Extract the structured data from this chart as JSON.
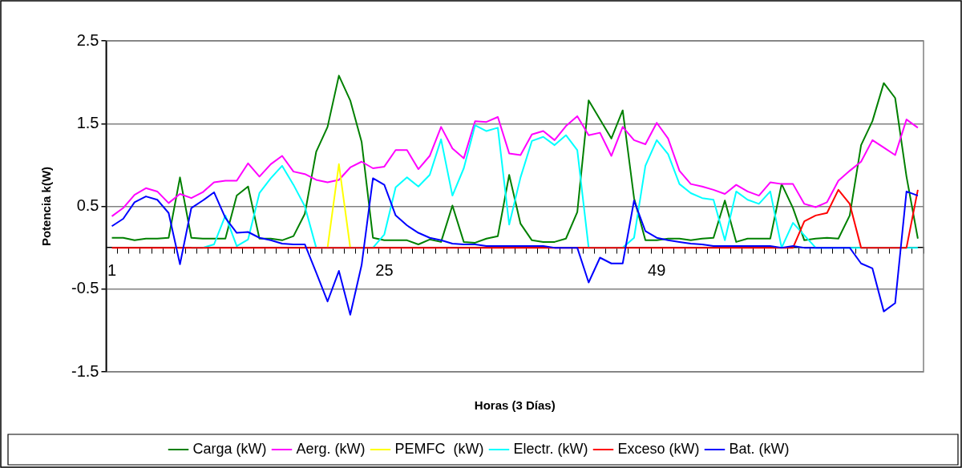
{
  "chart_data": {
    "type": "line",
    "xlabel": "Horas (3 Días)",
    "ylabel": "Potencia k(W)",
    "categories": [
      "1",
      null,
      null,
      null,
      null,
      null,
      null,
      null,
      null,
      null,
      null,
      null,
      null,
      null,
      null,
      null,
      null,
      null,
      null,
      null,
      null,
      null,
      null,
      null,
      "25",
      null,
      null,
      null,
      null,
      null,
      null,
      null,
      null,
      null,
      null,
      null,
      null,
      null,
      null,
      null,
      null,
      null,
      null,
      null,
      null,
      null,
      null,
      null,
      "49",
      null,
      null,
      null,
      null,
      null,
      null,
      null,
      null,
      null,
      null,
      null,
      null,
      null,
      null,
      null,
      null,
      null,
      null,
      null,
      null,
      null,
      null,
      null
    ],
    "ylim": [
      -1.5,
      2.5
    ],
    "yticks": [
      -1.5,
      -0.5,
      0.5,
      1.5,
      2.5
    ],
    "grid": "y",
    "legend": "bottom",
    "marker": "none",
    "line_style": "solid",
    "series": [
      {
        "name": "Carga (kW)",
        "color": "#008000",
        "values": [
          0.12,
          0.12,
          0.09,
          0.11,
          0.11,
          0.12,
          0.85,
          0.12,
          0.11,
          0.11,
          0.11,
          0.63,
          0.74,
          0.11,
          0.11,
          0.09,
          0.14,
          0.41,
          1.16,
          1.46,
          2.08,
          1.78,
          1.28,
          0.12,
          0.09,
          0.09,
          0.09,
          0.04,
          0.1,
          0.07,
          0.51,
          0.07,
          0.06,
          0.11,
          0.14,
          0.88,
          0.29,
          0.09,
          0.07,
          0.07,
          0.11,
          0.43,
          1.78,
          1.55,
          1.32,
          1.66,
          0.6,
          0.09,
          0.09,
          0.11,
          0.11,
          0.09,
          0.11,
          0.12,
          0.57,
          0.07,
          0.11,
          0.11,
          0.11,
          0.77,
          0.48,
          0.09,
          0.11,
          0.12,
          0.11,
          0.39,
          1.24,
          1.53,
          1.99,
          1.81,
          0.86,
          0.11
        ]
      },
      {
        "name": "Aerg. (kW)",
        "color": "#ff00ff",
        "values": [
          0.38,
          0.48,
          0.64,
          0.72,
          0.68,
          0.54,
          0.65,
          0.6,
          0.67,
          0.79,
          0.81,
          0.81,
          1.02,
          0.86,
          1.01,
          1.11,
          0.92,
          0.89,
          0.82,
          0.79,
          0.82,
          0.97,
          1.04,
          0.96,
          0.98,
          1.18,
          1.18,
          0.95,
          1.11,
          1.46,
          1.2,
          1.08,
          1.53,
          1.52,
          1.58,
          1.14,
          1.12,
          1.37,
          1.41,
          1.3,
          1.47,
          1.59,
          1.36,
          1.39,
          1.11,
          1.46,
          1.3,
          1.25,
          1.51,
          1.32,
          0.93,
          0.77,
          0.74,
          0.7,
          0.65,
          0.76,
          0.68,
          0.63,
          0.79,
          0.77,
          0.77,
          0.53,
          0.49,
          0.55,
          0.81,
          0.93,
          1.04,
          1.3,
          1.21,
          1.12,
          1.55,
          1.45
        ]
      },
      {
        "name": "PEMFC  (kW)",
        "color": "#ffff00",
        "values": [
          null,
          null,
          null,
          null,
          null,
          null,
          null,
          null,
          null,
          null,
          null,
          null,
          null,
          null,
          null,
          null,
          null,
          null,
          null,
          0,
          1.01,
          0,
          null,
          null,
          null,
          null,
          null,
          null,
          null,
          null,
          null,
          null,
          null,
          null,
          null,
          null,
          null,
          null,
          null,
          null,
          null,
          null,
          null,
          null,
          null,
          null,
          null,
          null,
          null,
          null,
          null,
          null,
          null,
          null,
          null,
          null,
          null,
          null,
          null,
          null,
          null,
          null,
          null,
          null,
          null,
          null,
          null,
          null,
          null,
          null,
          null,
          null
        ]
      },
      {
        "name": "Electr. (kW)",
        "color": "#00ffff",
        "values": [
          null,
          null,
          null,
          null,
          null,
          null,
          null,
          0,
          0,
          0.04,
          0.39,
          0.02,
          0.1,
          0.66,
          0.84,
          0.99,
          0.76,
          0.5,
          0,
          0,
          0,
          0,
          0,
          0,
          0.16,
          0.73,
          0.85,
          0.74,
          0.88,
          1.31,
          0.63,
          0.96,
          1.48,
          1.41,
          1.45,
          0.28,
          0.85,
          1.29,
          1.34,
          1.24,
          1.36,
          1.18,
          0,
          0,
          0,
          0,
          0.12,
          0.99,
          1.3,
          1.13,
          0.77,
          0.66,
          0.6,
          0.58,
          0.09,
          0.68,
          0.58,
          0.53,
          0.68,
          0,
          0.3,
          0.15,
          0,
          0,
          0,
          0,
          0,
          0,
          0,
          0,
          0,
          0
        ]
      },
      {
        "name": "Exceso (kW)",
        "color": "#ff0000",
        "values": [
          0,
          0,
          0,
          0,
          0,
          0,
          0,
          0,
          0,
          0,
          0,
          0,
          0,
          0,
          0,
          0,
          0,
          0,
          0,
          0,
          0,
          0,
          0,
          0,
          0,
          0,
          0,
          0,
          0,
          0,
          0,
          0,
          0,
          0,
          0,
          0,
          0,
          0,
          0,
          0,
          0,
          0,
          0,
          0,
          0,
          0,
          0,
          0,
          0,
          0,
          0,
          0,
          0,
          0,
          0,
          0,
          0,
          0,
          0,
          0,
          0,
          0.32,
          0.39,
          0.42,
          0.7,
          0.53,
          0,
          0,
          0,
          0,
          0,
          0.7
        ]
      },
      {
        "name": "Bat. (kW)",
        "color": "#0000ff",
        "values": [
          0.26,
          0.35,
          0.55,
          0.62,
          0.58,
          0.42,
          -0.2,
          0.48,
          0.57,
          0.67,
          0.36,
          0.18,
          0.19,
          0.12,
          0.09,
          0.05,
          0.04,
          0.04,
          -0.3,
          -0.65,
          -0.28,
          -0.81,
          -0.21,
          0.84,
          0.76,
          0.39,
          0.27,
          0.18,
          0.12,
          0.09,
          0.05,
          0.04,
          0.04,
          0.02,
          0.02,
          0.02,
          0.02,
          0.02,
          0.02,
          0,
          0,
          0,
          -0.42,
          -0.12,
          -0.19,
          -0.19,
          0.57,
          0.2,
          0.12,
          0.09,
          0.07,
          0.05,
          0.04,
          0.02,
          0.02,
          0.02,
          0.02,
          0.02,
          0.02,
          0,
          0.02,
          0,
          0,
          0,
          0,
          0,
          -0.19,
          -0.25,
          -0.77,
          -0.67,
          0.68,
          0.63
        ]
      }
    ]
  }
}
